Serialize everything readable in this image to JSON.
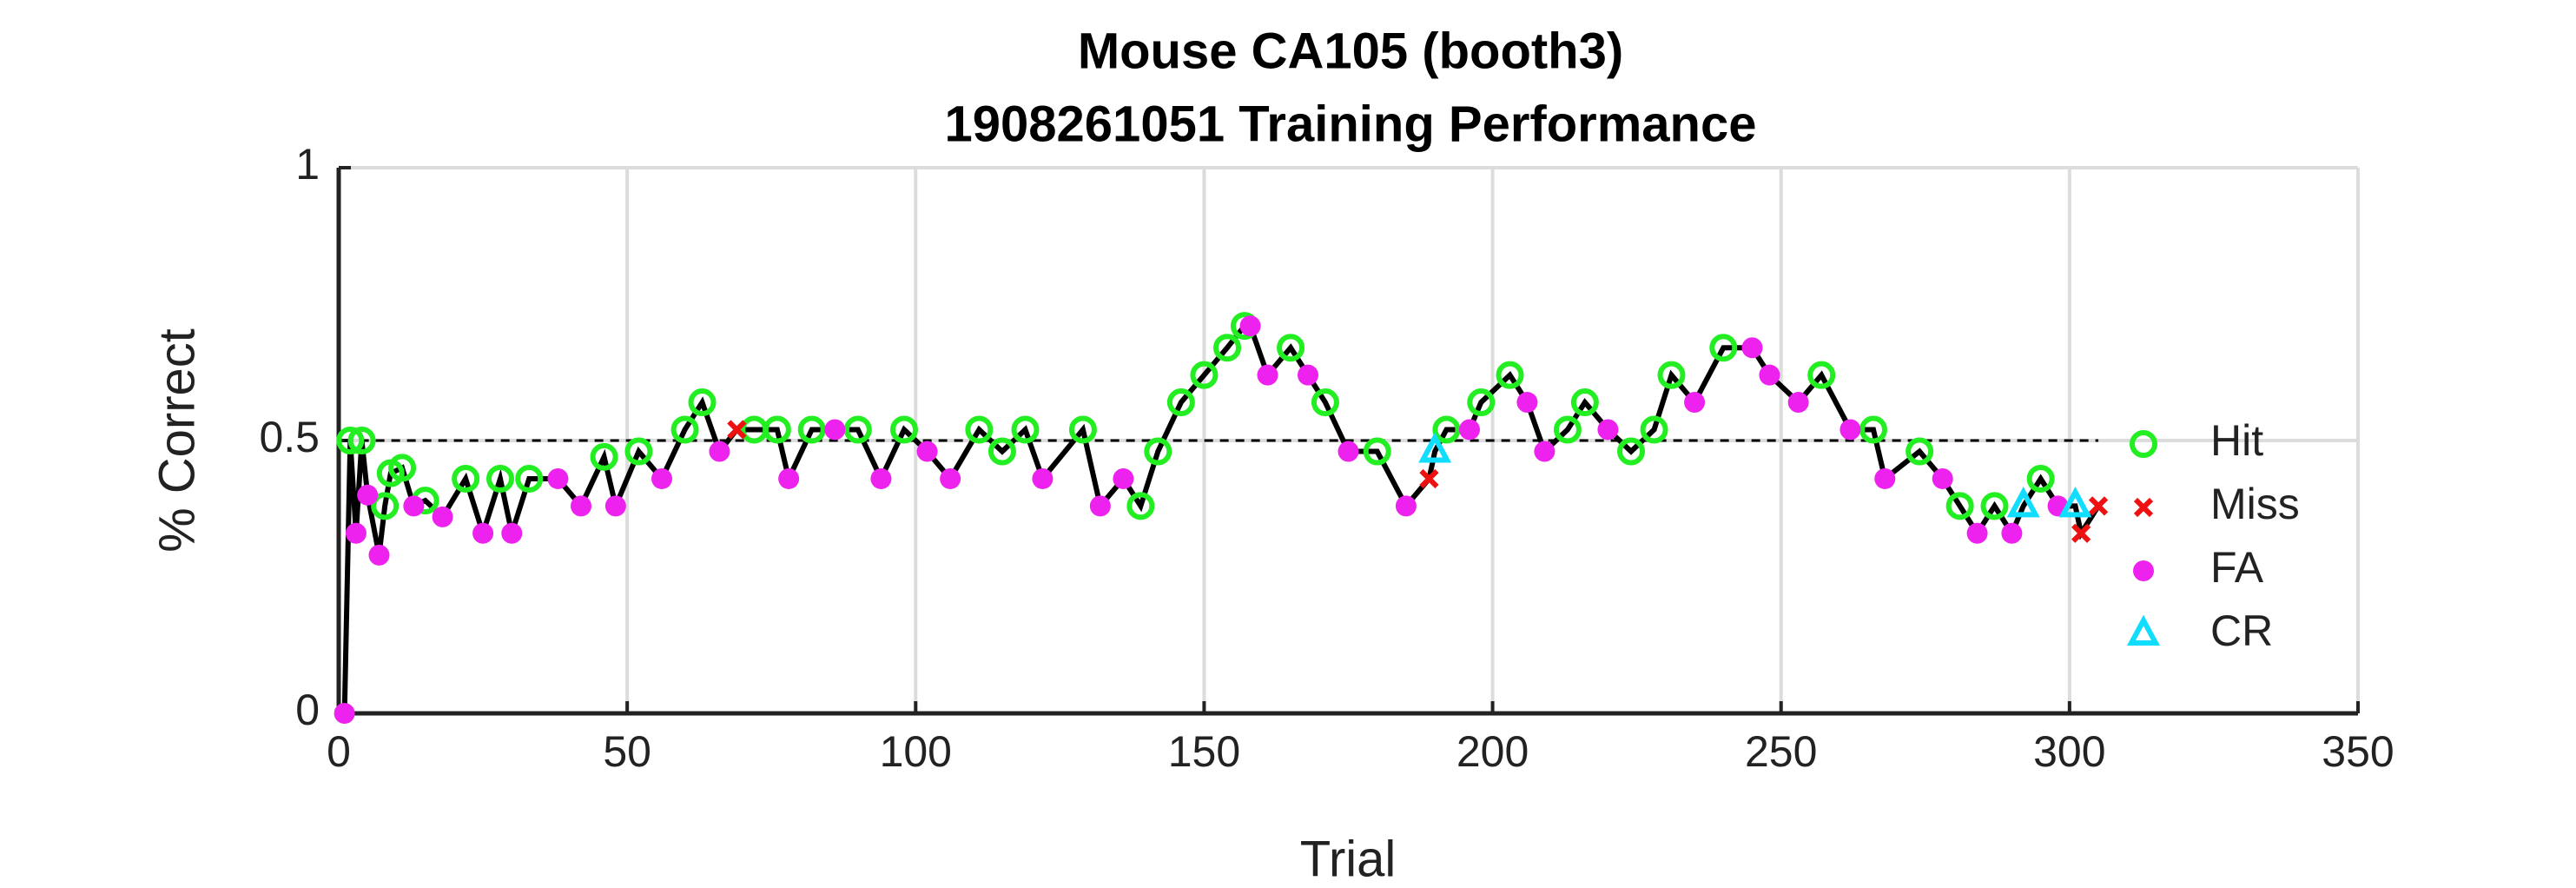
{
  "chart_data": {
    "type": "scatter",
    "title": [
      "Mouse CA105 (booth3)",
      "1908261051 Training Performance"
    ],
    "x_label": "Trial",
    "y_label": "% Correct",
    "xlim": [
      0,
      350
    ],
    "xticks": [
      0,
      50,
      100,
      150,
      200,
      250,
      300,
      350
    ],
    "ylim": [
      0,
      1
    ],
    "yticks": [
      0,
      0.5,
      1
    ],
    "grid": true,
    "hline": 0.5,
    "legend": "right",
    "line": {
      "color": "#000000",
      "x": [
        1,
        2,
        3,
        4,
        5,
        7,
        8,
        9,
        11,
        13,
        15,
        18,
        22,
        25,
        28,
        30,
        33,
        38,
        42,
        46,
        48,
        52,
        56,
        60,
        63,
        66,
        69,
        72,
        76,
        78,
        82,
        86,
        90,
        94,
        98,
        102,
        106,
        111,
        115,
        119,
        122,
        129,
        132,
        136,
        139,
        142,
        146,
        150,
        154,
        157,
        158,
        161,
        165,
        168,
        171,
        175,
        180,
        185,
        189,
        190,
        192,
        196,
        198,
        203,
        206,
        209,
        213,
        216,
        220,
        224,
        228,
        231,
        235,
        240,
        245,
        248,
        253,
        257,
        262,
        266,
        268,
        274,
        278,
        281,
        284,
        287,
        290,
        292,
        295,
        298,
        301,
        302,
        305
      ],
      "values": [
        0,
        0.5,
        0.33,
        0.5,
        0.4,
        0.29,
        0.38,
        0.44,
        0.45,
        0.38,
        0.39,
        0.36,
        0.43,
        0.33,
        0.43,
        0.33,
        0.43,
        0.43,
        0.38,
        0.47,
        0.38,
        0.48,
        0.43,
        0.52,
        0.57,
        0.48,
        0.52,
        0.52,
        0.52,
        0.43,
        0.52,
        0.52,
        0.52,
        0.43,
        0.52,
        0.48,
        0.43,
        0.52,
        0.48,
        0.52,
        0.43,
        0.52,
        0.38,
        0.43,
        0.38,
        0.48,
        0.57,
        0.62,
        0.67,
        0.71,
        0.71,
        0.62,
        0.67,
        0.62,
        0.57,
        0.48,
        0.48,
        0.38,
        0.43,
        0.48,
        0.52,
        0.52,
        0.57,
        0.62,
        0.57,
        0.48,
        0.52,
        0.57,
        0.52,
        0.48,
        0.52,
        0.62,
        0.57,
        0.67,
        0.67,
        0.62,
        0.57,
        0.62,
        0.52,
        0.52,
        0.43,
        0.48,
        0.43,
        0.38,
        0.33,
        0.38,
        0.33,
        0.38,
        0.43,
        0.38,
        0.38,
        0.33,
        0.38
      ]
    },
    "series": [
      {
        "name": "Hit",
        "color": "#22ee22",
        "marker": "open-circle",
        "x": [
          2,
          4,
          8,
          9,
          11,
          15,
          22,
          28,
          33,
          46,
          52,
          60,
          63,
          72,
          76,
          82,
          90,
          98,
          111,
          115,
          119,
          129,
          139,
          142,
          146,
          150,
          154,
          157,
          165,
          171,
          180,
          192,
          198,
          203,
          213,
          216,
          224,
          228,
          231,
          240,
          257,
          266,
          274,
          281,
          287,
          295
        ],
        "values": [
          0.5,
          0.5,
          0.38,
          0.44,
          0.45,
          0.39,
          0.43,
          0.43,
          0.43,
          0.47,
          0.48,
          0.52,
          0.57,
          0.52,
          0.52,
          0.52,
          0.52,
          0.52,
          0.52,
          0.48,
          0.52,
          0.52,
          0.38,
          0.48,
          0.57,
          0.62,
          0.67,
          0.71,
          0.67,
          0.57,
          0.48,
          0.52,
          0.57,
          0.62,
          0.52,
          0.57,
          0.48,
          0.52,
          0.62,
          0.67,
          0.62,
          0.52,
          0.48,
          0.38,
          0.38,
          0.43
        ]
      },
      {
        "name": "Miss",
        "color": "#ee1111",
        "marker": "cross",
        "x": [
          69,
          189,
          302,
          305
        ],
        "values": [
          0.52,
          0.43,
          0.33,
          0.38
        ]
      },
      {
        "name": "FA",
        "color": "#ee22ee",
        "marker": "dot",
        "x": [
          1,
          3,
          5,
          7,
          13,
          18,
          25,
          30,
          38,
          42,
          48,
          56,
          66,
          78,
          86,
          94,
          102,
          106,
          122,
          132,
          136,
          158,
          161,
          168,
          175,
          185,
          196,
          206,
          209,
          220,
          235,
          245,
          248,
          253,
          262,
          268,
          278,
          284,
          290,
          298
        ],
        "values": [
          0,
          0.33,
          0.4,
          0.29,
          0.38,
          0.36,
          0.33,
          0.33,
          0.43,
          0.38,
          0.38,
          0.43,
          0.48,
          0.43,
          0.52,
          0.43,
          0.48,
          0.43,
          0.43,
          0.38,
          0.43,
          0.71,
          0.62,
          0.62,
          0.48,
          0.38,
          0.52,
          0.57,
          0.48,
          0.52,
          0.57,
          0.67,
          0.62,
          0.57,
          0.52,
          0.43,
          0.43,
          0.33,
          0.33,
          0.38
        ]
      },
      {
        "name": "CR",
        "color": "#11ddff",
        "marker": "triangle",
        "x": [
          190,
          292,
          301
        ],
        "values": [
          0.48,
          0.38,
          0.38
        ]
      }
    ]
  }
}
